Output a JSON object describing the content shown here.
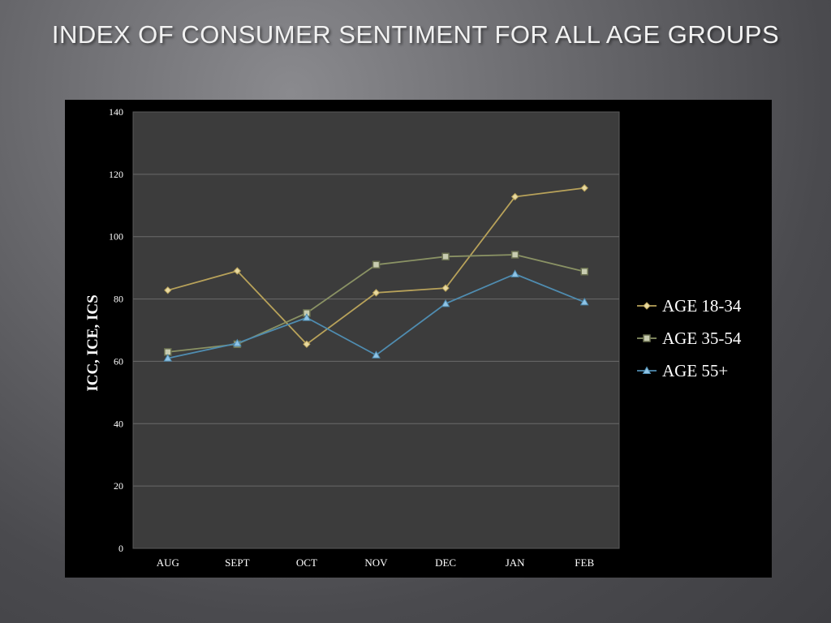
{
  "slide": {
    "title": "INDEX OF CONSUMER SENTIMENT FOR ALL AGE GROUPS"
  },
  "chart_data": {
    "type": "line",
    "title": "INDEX OF CONSUMER SENTIMENT FOR ALL AGE GROUPS",
    "xlabel": "",
    "ylabel": "ICC, ICE, ICS",
    "ylim": [
      0,
      140
    ],
    "yticks": [
      0,
      20,
      40,
      60,
      80,
      100,
      120,
      140
    ],
    "grid": true,
    "legend_position": "right",
    "categories": [
      "AUG",
      "SEPT",
      "OCT",
      "NOV",
      "DEC",
      "JAN",
      "FEB"
    ],
    "series": [
      {
        "name": "AGE 18-34",
        "marker": "diamond",
        "color": "#b8a25a",
        "values": [
          82.8,
          89,
          65.5,
          82,
          83.5,
          112.8,
          115.6
        ]
      },
      {
        "name": "AGE 35-54",
        "marker": "square",
        "color": "#8a9264",
        "values": [
          63,
          65.5,
          75.5,
          91,
          93.6,
          94.2,
          88.8
        ]
      },
      {
        "name": "AGE 55+",
        "marker": "triangle",
        "color": "#4f8cb0",
        "values": [
          61,
          65.8,
          74,
          62,
          78.5,
          88,
          79
        ]
      }
    ]
  }
}
